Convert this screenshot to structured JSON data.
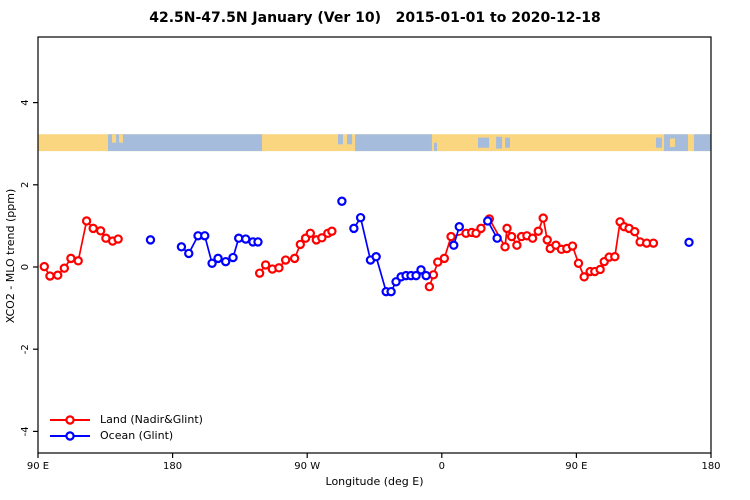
{
  "title": "42.5N-47.5N January (Ver 10)   2015-01-01 to 2020-12-18",
  "chart_data": {
    "type": "scatter",
    "title": "42.5N-47.5N January (Ver 10)   2015-01-01 to 2020-12-18",
    "xlabel": "Longitude (deg E)",
    "ylabel": "XCO2 - MLO trend (ppm)",
    "x_axis_note": "x measured in degrees along axis: 0 = 90 E at left edge, wrapping east to 180 at right edge (span 450 deg)",
    "xlim": [
      0,
      450
    ],
    "ylim": [
      -4.6,
      5.2
    ],
    "x_ticks": [
      {
        "t": 0,
        "label": "90 E"
      },
      {
        "t": 90,
        "label": "180"
      },
      {
        "t": 180,
        "label": "90 W"
      },
      {
        "t": 270,
        "label": "0"
      },
      {
        "t": 360,
        "label": "90 E"
      },
      {
        "t": 450,
        "label": "180"
      }
    ],
    "y_ticks": [
      {
        "v": -4,
        "label": "-4"
      },
      {
        "v": -2,
        "label": "-2"
      },
      {
        "v": 0,
        "label": "0"
      },
      {
        "v": 2,
        "label": "2"
      },
      {
        "v": 4,
        "label": "4"
      }
    ],
    "grid": false,
    "legend_position": "bottom-left",
    "map_band": {
      "description": "coarse land/ocean strip drawn across plot at value ~3 ppm",
      "top_value": 3.23,
      "bottom_value": 2.82,
      "land_color": "#FBD681",
      "ocean_color": "#A6BCDC",
      "ocean_segments": [
        [
          46.8,
          149.8,
          0,
          1
        ],
        [
          200.6,
          203.9,
          0,
          0.6
        ],
        [
          206.6,
          210.0,
          0,
          0.6
        ],
        [
          212.0,
          263.4,
          0,
          1
        ],
        [
          264.8,
          266.8,
          0.5,
          1
        ],
        [
          294.2,
          301.6,
          0.2,
          0.8
        ],
        [
          306.3,
          310.3,
          0.15,
          0.85
        ],
        [
          312.3,
          315.6,
          0.2,
          0.8
        ],
        [
          413.2,
          417.2,
          0.2,
          0.8
        ],
        [
          418.6,
          434.6,
          0,
          1
        ],
        [
          438.6,
          450,
          0,
          1
        ]
      ],
      "island_segments": [
        [
          49.5,
          52.2,
          0,
          0.5
        ],
        [
          54.2,
          56.8,
          0,
          0.5
        ],
        [
          422.6,
          425.9,
          0.25,
          0.75
        ]
      ]
    },
    "series": [
      {
        "name": "Land (Nadir&Glint)",
        "color": "#FF0000",
        "segments": [
          [
            [
              4.2,
              0.01
            ],
            [
              8,
              -0.22
            ],
            [
              13.2,
              -0.2
            ],
            [
              17.6,
              -0.03
            ],
            [
              22,
              0.21
            ],
            [
              26.9,
              0.15
            ],
            [
              32.5,
              1.12
            ],
            [
              36.9,
              0.94
            ],
            [
              41.9,
              0.88
            ],
            [
              45.4,
              0.7
            ],
            [
              49.9,
              0.63
            ],
            [
              53.6,
              0.68
            ]
          ],
          [
            [
              148.2,
              -0.15
            ],
            [
              152.2,
              0.05
            ],
            [
              156.7,
              -0.05
            ],
            [
              161.1,
              -0.02
            ],
            [
              165.6,
              0.17
            ],
            [
              171.6,
              0.21
            ],
            [
              175.4,
              0.55
            ],
            [
              178.9,
              0.7
            ],
            [
              182.1,
              0.82
            ],
            [
              186.1,
              0.66
            ],
            [
              189.8,
              0.71
            ],
            [
              193.8,
              0.82
            ],
            [
              196.5,
              0.87
            ]
          ],
          [
            [
              261.7,
              -0.48
            ],
            [
              264.4,
              -0.19
            ],
            [
              267.3,
              0.12
            ],
            [
              271.7,
              0.21
            ],
            [
              276.2,
              0.74
            ],
            [
              286.2,
              0.82
            ],
            [
              290,
              0.84
            ],
            [
              292.9,
              0.82
            ],
            [
              296.2,
              0.94
            ],
            [
              301.8,
              1.17
            ],
            [
              312.3,
              0.49
            ],
            [
              313.6,
              0.94
            ],
            [
              316.7,
              0.74
            ],
            [
              320.2,
              0.53
            ],
            [
              323.3,
              0.74
            ],
            [
              326.9,
              0.76
            ],
            [
              330.7,
              0.7
            ],
            [
              334.5,
              0.87
            ],
            [
              337.8,
              1.19
            ],
            [
              340.5,
              0.66
            ],
            [
              342.5,
              0.45
            ],
            [
              346.3,
              0.53
            ],
            [
              350,
              0.43
            ],
            [
              353.6,
              0.45
            ],
            [
              357.4,
              0.51
            ],
            [
              361.4,
              0.09
            ],
            [
              365.2,
              -0.24
            ],
            [
              369.2,
              -0.11
            ],
            [
              372.3,
              -0.11
            ],
            [
              375.9,
              -0.06
            ],
            [
              378.6,
              0.13
            ],
            [
              381.9,
              0.24
            ],
            [
              385.7,
              0.25
            ],
            [
              389.2,
              1.1
            ],
            [
              391.9,
              0.98
            ],
            [
              395.2,
              0.94
            ],
            [
              399,
              0.86
            ],
            [
              402.6,
              0.61
            ],
            [
              407,
              0.58
            ],
            [
              411.5,
              0.58
            ]
          ]
        ]
      },
      {
        "name": "Ocean (Glint)",
        "color": "#0000FF",
        "segments": [
          [
            [
              75.2,
              0.66
            ]
          ],
          [
            [
              95.9,
              0.49
            ],
            [
              100.8,
              0.33
            ],
            [
              107,
              0.76
            ],
            [
              111.5,
              0.76
            ],
            [
              116.4,
              0.09
            ],
            [
              120.4,
              0.21
            ],
            [
              125.5,
              0.13
            ],
            [
              130.4,
              0.23
            ],
            [
              134.2,
              0.7
            ],
            [
              138.9,
              0.68
            ],
            [
              143.7,
              0.61
            ],
            [
              147.1,
              0.61
            ]
          ],
          [
            [
              203.2,
              1.6
            ]
          ],
          [
            [
              211.2,
              0.94
            ],
            [
              215.7,
              1.2
            ],
            [
              222.3,
              0.17
            ],
            [
              226.1,
              0.25
            ],
            [
              232.8,
              -0.6
            ],
            [
              236.1,
              -0.6
            ],
            [
              239.4,
              -0.36
            ],
            [
              242.8,
              -0.24
            ],
            [
              246.1,
              -0.21
            ],
            [
              249.4,
              -0.21
            ],
            [
              252.8,
              -0.21
            ],
            [
              256.1,
              -0.07
            ],
            [
              259.5,
              -0.21
            ]
          ],
          [
            [
              278,
              0.53
            ],
            [
              281.7,
              0.98
            ]
          ],
          [
            [
              300.7,
              1.12
            ],
            [
              307,
              0.7
            ]
          ],
          [
            [
              435.3,
              0.6
            ]
          ]
        ]
      }
    ]
  }
}
